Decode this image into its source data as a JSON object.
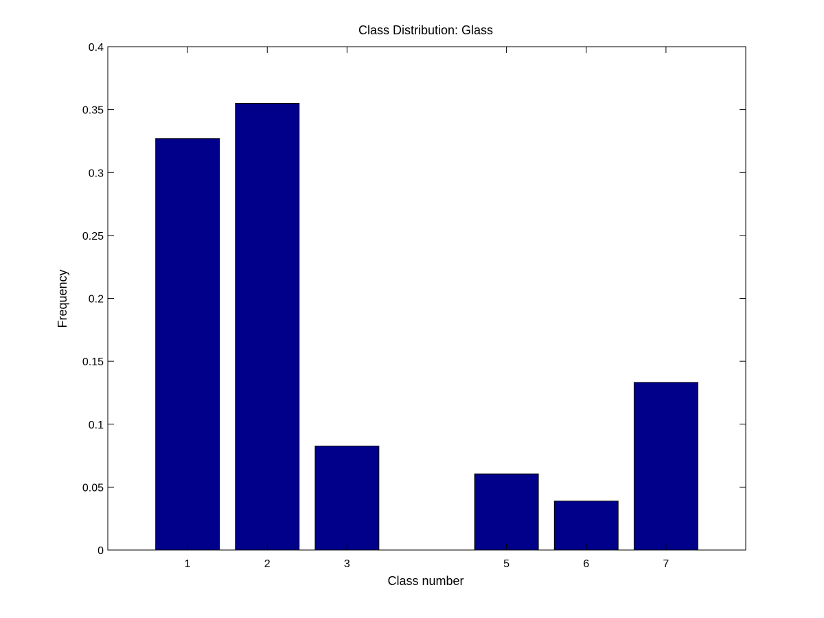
{
  "chart_data": {
    "type": "bar",
    "title": "Class Distribution: Glass",
    "xlabel": "Class number",
    "ylabel": "Frequency",
    "categories": [
      "1",
      "2",
      "3",
      "5",
      "6",
      "7"
    ],
    "x": [
      1,
      2,
      3,
      5,
      6,
      7
    ],
    "values": [
      0.327,
      0.355,
      0.0826,
      0.0605,
      0.0389,
      0.1332
    ],
    "xlim": [
      0,
      8
    ],
    "ylim": [
      0,
      0.4
    ],
    "yticks": [
      0,
      0.05,
      0.1,
      0.15,
      0.2,
      0.25,
      0.3,
      0.35,
      0.4
    ],
    "ytick_labels": [
      "0",
      "0.05",
      "0.1",
      "0.15",
      "0.2",
      "0.25",
      "0.3",
      "0.35",
      "0.4"
    ],
    "bar_color": "#00008b",
    "grid": false
  }
}
